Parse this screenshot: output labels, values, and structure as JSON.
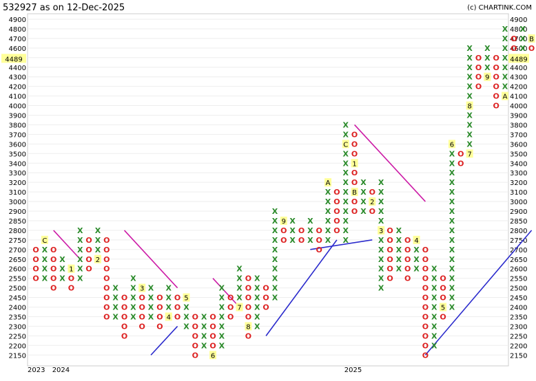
{
  "header": {
    "title": "532927 as on 12-Dec-2025",
    "credit": "(c) CHARTINK.COM"
  },
  "colors": {
    "x": "#2a8a2a",
    "o": "#dd2222",
    "resistance": "#cc1aa6",
    "support": "#2a2acc",
    "price_tag": "#ffff99"
  },
  "chart_data": {
    "type": "point-and-figure",
    "box_size": 50,
    "y_ticks": [
      2150,
      2200,
      2250,
      2300,
      2350,
      2400,
      2450,
      2500,
      2550,
      2600,
      2650,
      2700,
      2750,
      2800,
      2850,
      2900,
      3000,
      3100,
      3200,
      3300,
      3400,
      3500,
      3600,
      3700,
      3800,
      3900,
      4000,
      4100,
      4200,
      4300,
      4400,
      4500,
      4600,
      4700,
      4800,
      4900
    ],
    "current_price_label": "4489",
    "x_labels": [
      {
        "col": 0,
        "text": "2023"
      },
      {
        "col": 2,
        "text": "2024"
      },
      {
        "col": 35,
        "text": "2025"
      }
    ],
    "columns": [
      {
        "t": "O",
        "hi": 2700,
        "lo": 2550,
        "mon": []
      },
      {
        "t": "X",
        "hi": 2750,
        "lo": 2550,
        "mon": [
          {
            "lvl": 2750,
            "txt": "C"
          }
        ]
      },
      {
        "t": "O",
        "hi": 2700,
        "lo": 2500,
        "mon": []
      },
      {
        "t": "X",
        "hi": 2650,
        "lo": 2550,
        "mon": []
      },
      {
        "t": "O",
        "hi": 2600,
        "lo": 2500,
        "mon": [
          {
            "lvl": 2600,
            "txt": "1"
          }
        ]
      },
      {
        "t": "X",
        "hi": 2800,
        "lo": 2550,
        "mon": []
      },
      {
        "t": "O",
        "hi": 2750,
        "lo": 2600,
        "mon": []
      },
      {
        "t": "X",
        "hi": 2800,
        "lo": 2650,
        "mon": [
          {
            "lvl": 2650,
            "txt": "2"
          }
        ]
      },
      {
        "t": "O",
        "hi": 2750,
        "lo": 2350,
        "mon": []
      },
      {
        "t": "X",
        "hi": 2500,
        "lo": 2350,
        "mon": []
      },
      {
        "t": "O",
        "hi": 2450,
        "lo": 2250,
        "mon": []
      },
      {
        "t": "X",
        "hi": 2550,
        "lo": 2350,
        "mon": []
      },
      {
        "t": "O",
        "hi": 2500,
        "lo": 2300,
        "mon": [
          {
            "lvl": 2500,
            "txt": "3"
          }
        ]
      },
      {
        "t": "X",
        "hi": 2500,
        "lo": 2350,
        "mon": []
      },
      {
        "t": "O",
        "hi": 2450,
        "lo": 2300,
        "mon": []
      },
      {
        "t": "X",
        "hi": 2500,
        "lo": 2350,
        "mon": [
          {
            "lvl": 2350,
            "txt": "4"
          }
        ]
      },
      {
        "t": "O",
        "hi": 2450,
        "lo": 2350,
        "mon": []
      },
      {
        "t": "X",
        "hi": 2450,
        "lo": 2300,
        "mon": [
          {
            "lvl": 2450,
            "txt": "5"
          }
        ]
      },
      {
        "t": "O",
        "hi": 2350,
        "lo": 2150,
        "mon": []
      },
      {
        "t": "X",
        "hi": 2350,
        "lo": 2200,
        "mon": []
      },
      {
        "t": "O",
        "hi": 2350,
        "lo": 2150,
        "mon": [
          {
            "lvl": 2150,
            "txt": "6"
          }
        ]
      },
      {
        "t": "X",
        "hi": 2500,
        "lo": 2200,
        "mon": []
      },
      {
        "t": "O",
        "hi": 2450,
        "lo": 2350,
        "mon": []
      },
      {
        "t": "X",
        "hi": 2600,
        "lo": 2400,
        "mon": [
          {
            "lvl": 2400,
            "txt": "7"
          }
        ]
      },
      {
        "t": "O",
        "hi": 2550,
        "lo": 2250,
        "mon": [
          {
            "lvl": 2300,
            "txt": "8"
          }
        ]
      },
      {
        "t": "X",
        "hi": 2550,
        "lo": 2300,
        "mon": []
      },
      {
        "t": "O",
        "hi": 2500,
        "lo": 2400,
        "mon": []
      },
      {
        "t": "X",
        "hi": 2900,
        "lo": 2450,
        "mon": []
      },
      {
        "t": "O",
        "hi": 2850,
        "lo": 2750,
        "mon": [
          {
            "lvl": 2850,
            "txt": "9"
          }
        ]
      },
      {
        "t": "X",
        "hi": 2850,
        "lo": 2750,
        "mon": []
      },
      {
        "t": "O",
        "hi": 2800,
        "lo": 2750,
        "mon": []
      },
      {
        "t": "X",
        "hi": 2850,
        "lo": 2750,
        "mon": []
      },
      {
        "t": "O",
        "hi": 2800,
        "lo": 2700,
        "mon": []
      },
      {
        "t": "X",
        "hi": 3200,
        "lo": 2750,
        "mon": [
          {
            "lvl": 3200,
            "txt": "A"
          }
        ]
      },
      {
        "t": "O",
        "hi": 3100,
        "lo": 2800,
        "mon": []
      },
      {
        "t": "X",
        "hi": 3800,
        "lo": 2750,
        "mon": [
          {
            "lvl": 3600,
            "txt": "C"
          }
        ]
      },
      {
        "t": "O",
        "hi": 3700,
        "lo": 2900,
        "mon": [
          {
            "lvl": 3400,
            "txt": "1"
          },
          {
            "lvl": 3100,
            "txt": "B"
          }
        ]
      },
      {
        "t": "X",
        "hi": 3200,
        "lo": 2900,
        "mon": []
      },
      {
        "t": "O",
        "hi": 3100,
        "lo": 2900,
        "mon": [
          {
            "lvl": 3000,
            "txt": "2"
          }
        ]
      },
      {
        "t": "X",
        "hi": 3200,
        "lo": 2500,
        "mon": [
          {
            "lvl": 2800,
            "txt": "3"
          }
        ]
      },
      {
        "t": "O",
        "hi": 2800,
        "lo": 2550,
        "mon": []
      },
      {
        "t": "X",
        "hi": 2800,
        "lo": 2600,
        "mon": []
      },
      {
        "t": "O",
        "hi": 2750,
        "lo": 2550,
        "mon": []
      },
      {
        "t": "X",
        "hi": 2750,
        "lo": 2600,
        "mon": [
          {
            "lvl": 2750,
            "txt": "4"
          }
        ]
      },
      {
        "t": "O",
        "hi": 2700,
        "lo": 2150,
        "mon": []
      },
      {
        "t": "X",
        "hi": 2600,
        "lo": 2200,
        "mon": []
      },
      {
        "t": "O",
        "hi": 2550,
        "lo": 2350,
        "mon": [
          {
            "lvl": 2400,
            "txt": "5"
          }
        ]
      },
      {
        "t": "X",
        "hi": 3600,
        "lo": 2400,
        "mon": [
          {
            "lvl": 3600,
            "txt": "6"
          }
        ]
      },
      {
        "t": "O",
        "hi": 3500,
        "lo": 3400,
        "mon": []
      },
      {
        "t": "X",
        "hi": 4600,
        "lo": 3500,
        "mon": [
          {
            "lvl": 4000,
            "txt": "8"
          },
          {
            "lvl": 3500,
            "txt": "7"
          }
        ]
      },
      {
        "t": "O",
        "hi": 4500,
        "lo": 4200,
        "mon": []
      },
      {
        "t": "X",
        "hi": 4600,
        "lo": 4300,
        "mon": [
          {
            "lvl": 4300,
            "txt": "9"
          }
        ]
      },
      {
        "t": "O",
        "hi": 4500,
        "lo": 4000,
        "mon": []
      },
      {
        "t": "X",
        "hi": 4800,
        "lo": 4100,
        "mon": [
          {
            "lvl": 4100,
            "txt": "A"
          }
        ]
      },
      {
        "t": "O",
        "hi": 4700,
        "lo": 4600,
        "mon": []
      },
      {
        "t": "X",
        "hi": 4800,
        "lo": 4600,
        "mon": []
      },
      {
        "t": "O",
        "hi": 4700,
        "lo": 4600,
        "mon": [
          {
            "lvl": 4700,
            "txt": "B"
          }
        ]
      },
      {
        "t": "X",
        "hi": 4900,
        "lo": 4200,
        "mon": [
          {
            "lvl": 4700,
            "txt": "C"
          }
        ]
      },
      {
        "t": "O",
        "hi": 4800,
        "lo": 4400,
        "mon": []
      }
    ],
    "trendlines": [
      {
        "color": "resistance",
        "from": [
          2,
          2800
        ],
        "to": [
          5,
          2650
        ]
      },
      {
        "color": "resistance",
        "from": [
          10,
          2800
        ],
        "to": [
          16,
          2500
        ]
      },
      {
        "color": "resistance",
        "from": [
          20,
          2550
        ],
        "to": [
          23,
          2400
        ]
      },
      {
        "color": "resistance",
        "from": [
          36,
          3800
        ],
        "to": [
          44,
          3000
        ]
      },
      {
        "color": "support",
        "from": [
          13,
          2150
        ],
        "to": [
          16,
          2300
        ]
      },
      {
        "color": "support",
        "from": [
          26,
          2250
        ],
        "to": [
          34,
          2750
        ]
      },
      {
        "color": "support",
        "from": [
          31,
          2700
        ],
        "to": [
          38,
          2750
        ]
      },
      {
        "color": "support",
        "from": [
          44,
          2150
        ],
        "to": [
          56,
          2800
        ]
      }
    ]
  }
}
